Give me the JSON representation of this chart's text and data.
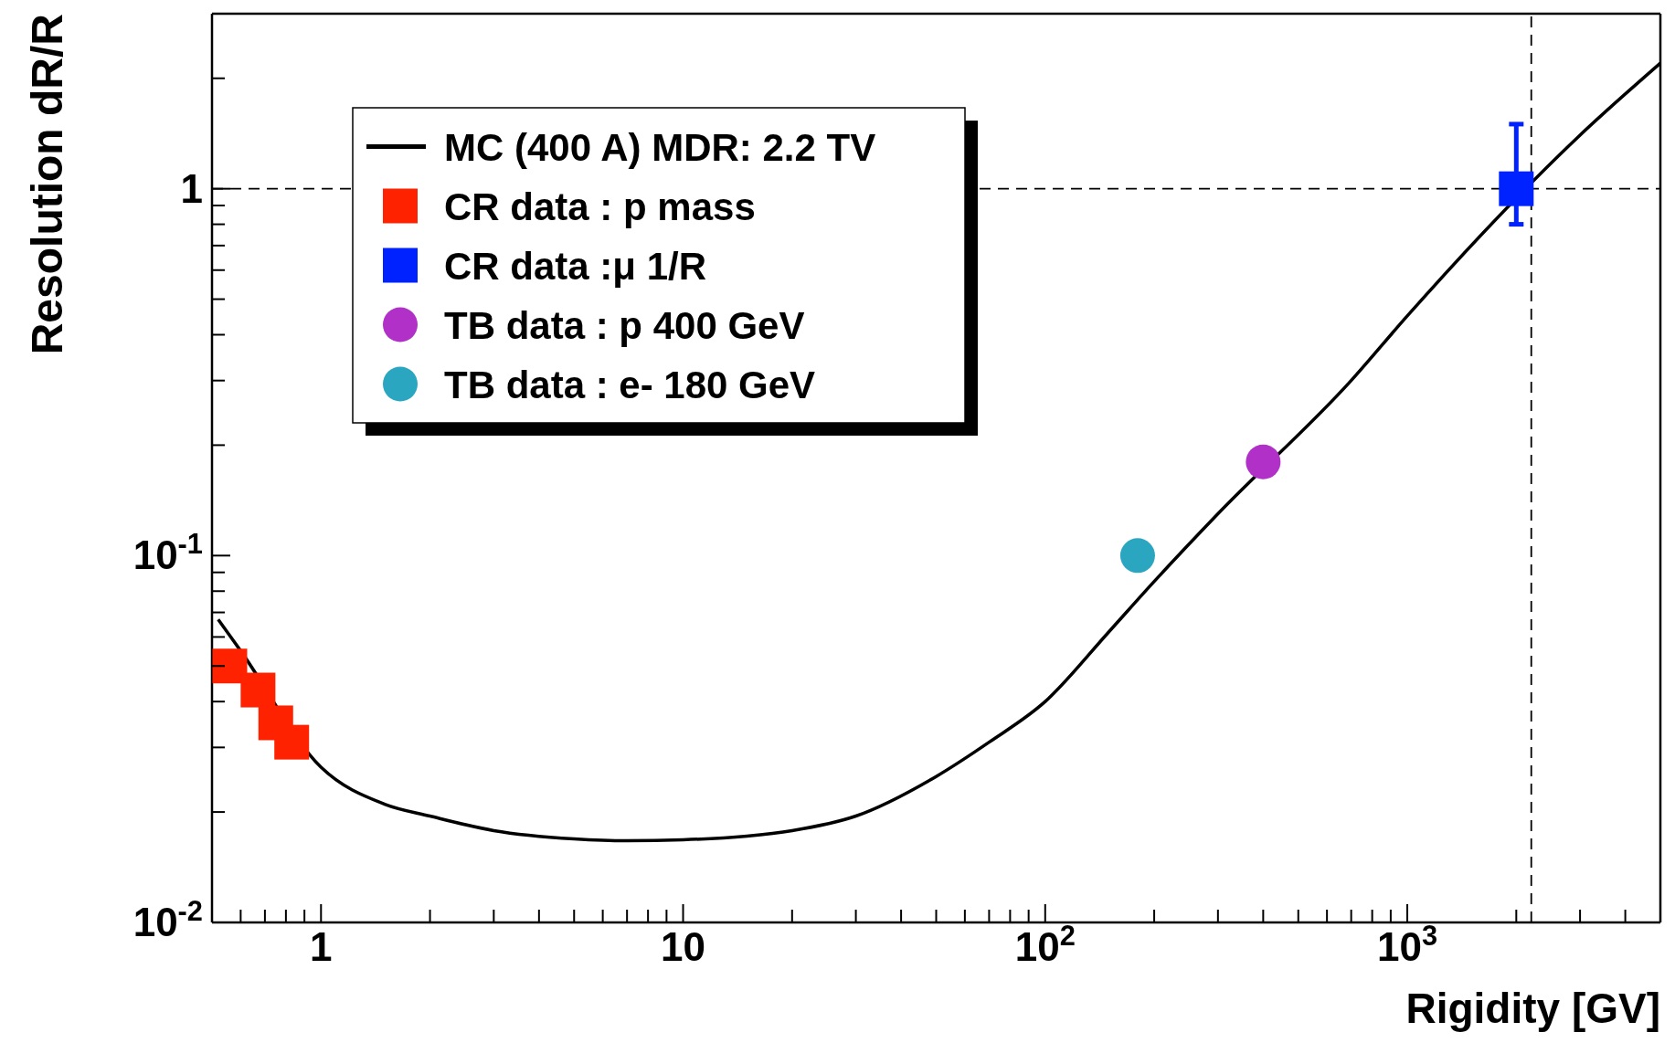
{
  "chart_data": {
    "type": "scatter",
    "xlabel": "Rigidity [GV]",
    "ylabel": "Resolution dR/R",
    "log": "xy",
    "grid": false,
    "legend": "top left",
    "xlim": [
      0.5,
      5000
    ],
    "xticks": [
      {
        "value": 0.5,
        "label": null
      },
      {
        "value": 0.6,
        "label": null
      },
      {
        "value": 0.7,
        "label": null
      },
      {
        "value": 0.8,
        "label": null
      },
      {
        "value": 0.9,
        "label": null
      },
      1,
      {
        "value": 2,
        "label": null
      },
      {
        "value": 3,
        "label": null
      },
      {
        "value": 4,
        "label": null
      },
      {
        "value": 5,
        "label": null
      },
      {
        "value": 6,
        "label": null
      },
      {
        "value": 7,
        "label": null
      },
      {
        "value": 8,
        "label": null
      },
      {
        "value": 9,
        "label": null
      },
      10,
      {
        "value": 20,
        "label": null
      },
      {
        "value": 30,
        "label": null
      },
      {
        "value": 40,
        "label": null
      },
      {
        "value": 50,
        "label": null
      },
      {
        "value": 60,
        "label": null
      },
      {
        "value": 70,
        "label": null
      },
      {
        "value": 80,
        "label": null
      },
      {
        "value": 90,
        "label": null
      },
      {
        "value": 100,
        "label": "10$^{2}$"
      },
      {
        "value": 200,
        "label": null
      },
      {
        "value": 300,
        "label": null
      },
      {
        "value": 400,
        "label": null
      },
      {
        "value": 500,
        "label": null
      },
      {
        "value": 600,
        "label": null
      },
      {
        "value": 700,
        "label": null
      },
      {
        "value": 800,
        "label": null
      },
      {
        "value": 900,
        "label": null
      },
      {
        "value": 1000,
        "label": "10$^{3}$"
      },
      {
        "value": 2000,
        "label": null
      },
      {
        "value": 3000,
        "label": null
      },
      {
        "value": 4000,
        "label": null
      },
      {
        "value": 5000,
        "label": null
      }
    ],
    "ylim": [
      0.01,
      3
    ],
    "yticks": [
      {
        "value": 0.01,
        "label": "10$^{-2}$"
      },
      {
        "value": 0.02,
        "label": null
      },
      {
        "value": 0.03,
        "label": null
      },
      {
        "value": 0.04,
        "label": null
      },
      {
        "value": 0.05,
        "label": null
      },
      {
        "value": 0.06,
        "label": null
      },
      {
        "value": 0.07,
        "label": null
      },
      {
        "value": 0.08,
        "label": null
      },
      {
        "value": 0.09,
        "label": null
      },
      {
        "value": 0.1,
        "label": "10$^{-1}$"
      },
      {
        "value": 0.2,
        "label": null
      },
      {
        "value": 0.3,
        "label": null
      },
      {
        "value": 0.4,
        "label": null
      },
      {
        "value": 0.5,
        "label": null
      },
      {
        "value": 0.6,
        "label": null
      },
      {
        "value": 0.7,
        "label": null
      },
      {
        "value": 0.8,
        "label": null
      },
      {
        "value": 0.9,
        "label": null
      },
      1,
      {
        "value": 2,
        "label": null
      },
      {
        "value": 3,
        "label": null
      }
    ],
    "ref_lines": [
      {
        "axis": "x",
        "value": 2200,
        "color": "#000000",
        "line_style": "dashed"
      },
      {
        "axis": "y",
        "value": 1,
        "color": "#000000",
        "line_style": "dashed"
      }
    ],
    "series": [
      {
        "name": "MC (400 A) MDR: 2.2 TV",
        "type": "line",
        "color": "#000000",
        "marker": "none",
        "line_style": "solid",
        "x": [
          0.52,
          0.6,
          1,
          1.5,
          2,
          3,
          5,
          7,
          10,
          15,
          20,
          30,
          50,
          70,
          100,
          150,
          200,
          300,
          700,
          1000,
          3000,
          5000
        ],
        "values": [
          0.067,
          0.055,
          0.0265,
          0.021,
          0.0195,
          0.0178,
          0.0169,
          0.0167,
          0.0168,
          0.0172,
          0.0178,
          0.0195,
          0.025,
          0.031,
          0.04,
          0.062,
          0.085,
          0.13,
          0.3,
          0.45,
          1.4,
          2.2
        ]
      },
      {
        "name": "CR data : p mass",
        "color": "#ff2200",
        "marker": "square",
        "x": [
          0.56,
          0.67,
          0.75,
          0.83
        ],
        "values": [
          0.05,
          0.043,
          0.035,
          0.031
        ]
      },
      {
        "name": "CR data :μ 1/R",
        "color": "#0022ff",
        "marker": "square",
        "x": [
          2000
        ],
        "values": [
          1
        ],
        "errors": [
          [
            0.8,
            1.5
          ]
        ]
      },
      {
        "name": "TB data : p  400 GeV",
        "color": "#b030c8",
        "marker": "circle",
        "x": [
          400
        ],
        "values": [
          0.18
        ]
      },
      {
        "name": "TB data : e- 180 GeV",
        "color": "#2aa6c0",
        "marker": "circle",
        "x": [
          180
        ],
        "values": [
          0.1
        ]
      }
    ]
  }
}
